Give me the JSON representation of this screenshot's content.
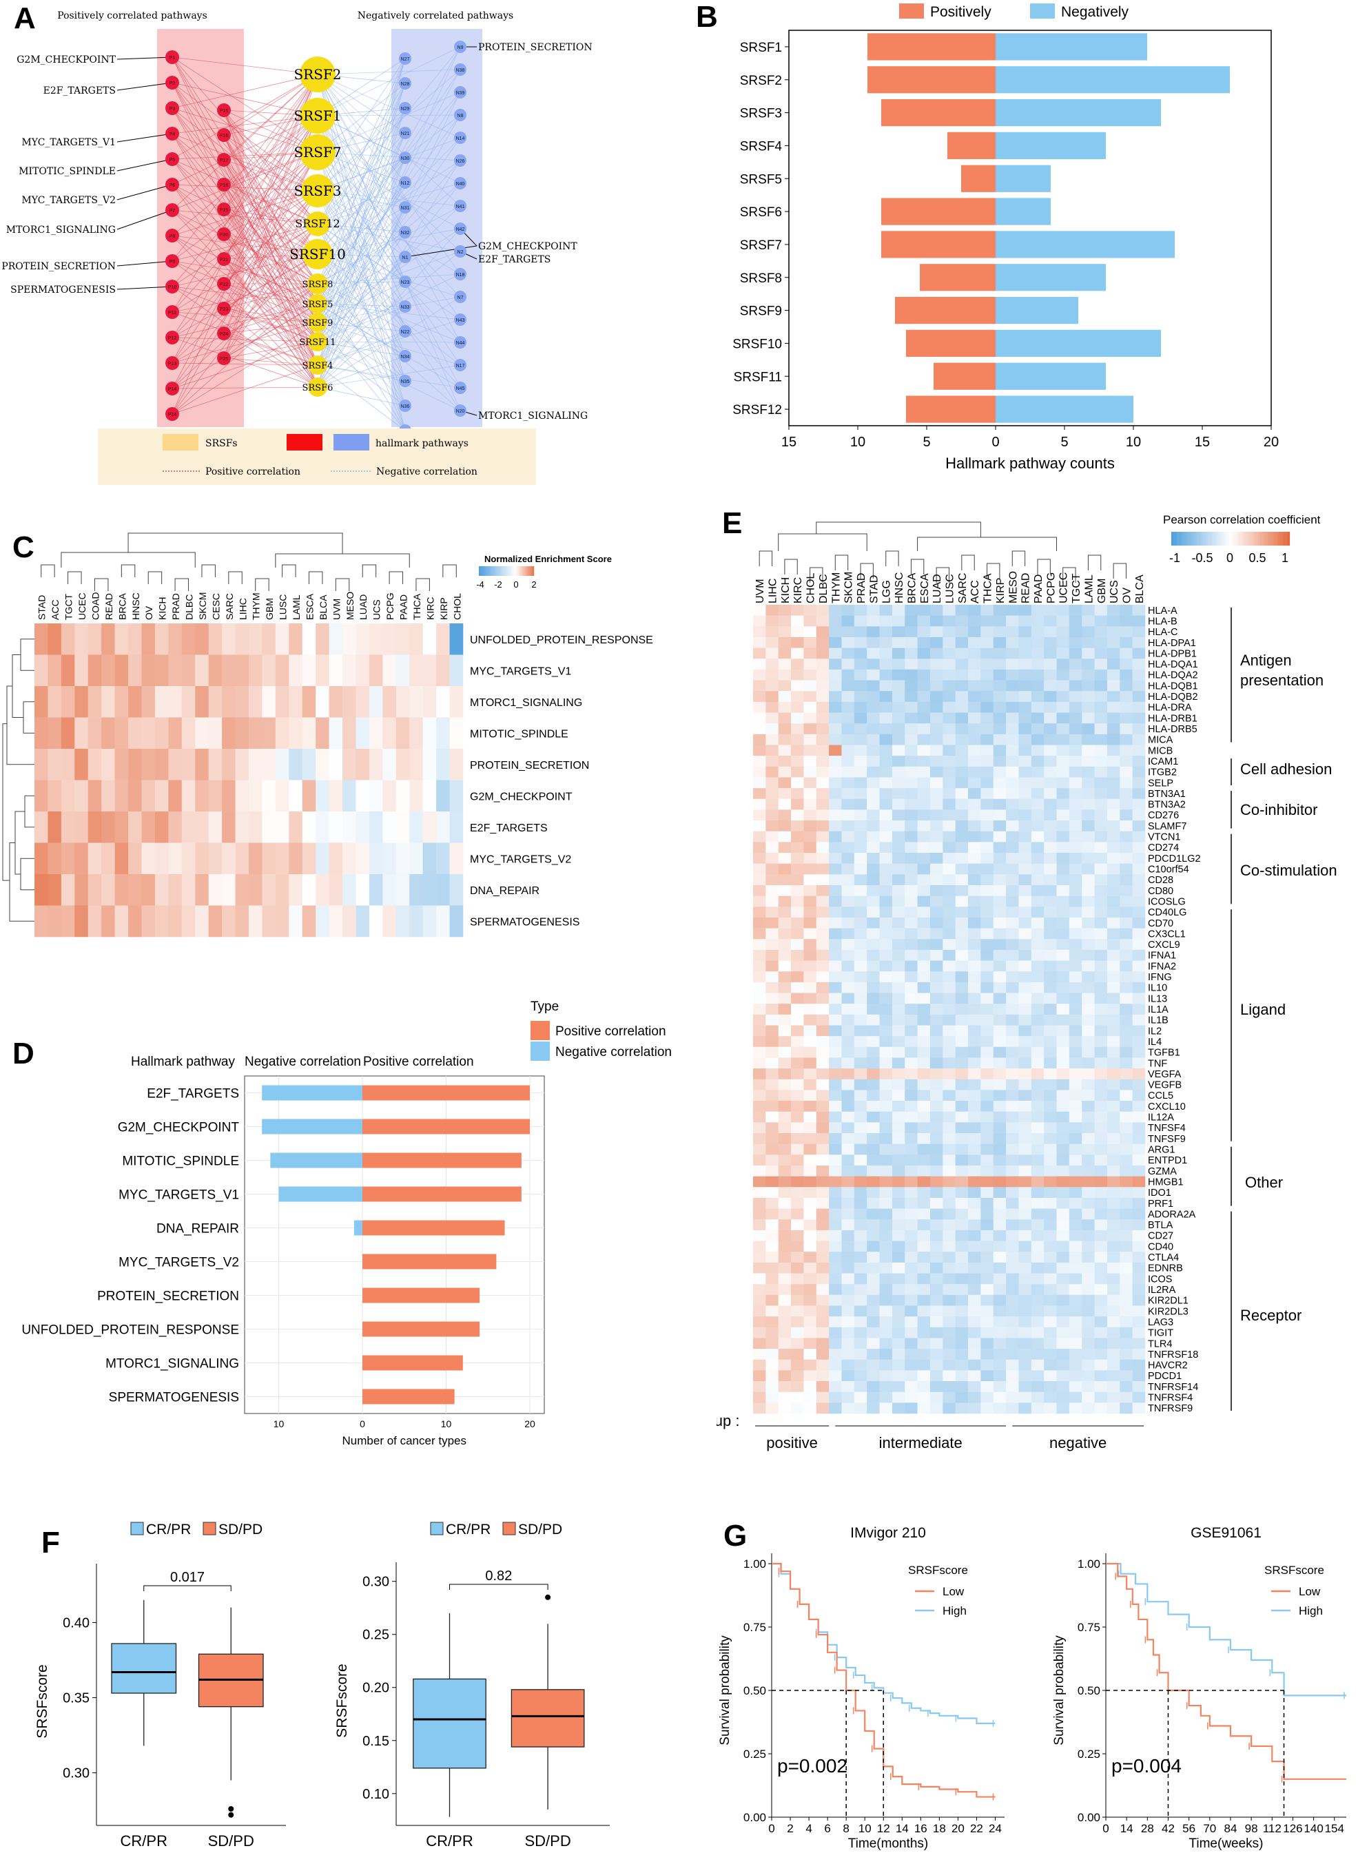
{
  "panel_labels": [
    "A",
    "B",
    "C",
    "D",
    "E",
    "F",
    "G"
  ],
  "colors": {
    "pos": "#f4845f",
    "neg": "#87c9f0",
    "srsf": "#f7dd16",
    "red_node": "#e8193c",
    "blue_node": "#8aa6f2"
  },
  "panel_a": {
    "pos_header": "Positively correlated pathways",
    "neg_header": "Negatively correlated pathways",
    "left_labels": [
      "G2M_CHECKPOINT",
      "E2F_TARGETS",
      "MYC_TARGETS_V1",
      "MITOTIC_SPINDLE",
      "MYC_TARGETS_V2",
      "MTORC1_SIGNALING",
      "PROTEIN_SECRETION",
      "SPERMATOGENESIS"
    ],
    "right_labels": [
      "PROTEIN_SECRETION",
      "G2M_CHECKPOINT",
      "E2F_TARGETS",
      "MTORC1_SIGNALING"
    ],
    "srsf_nodes": [
      "SRSF2",
      "SRSF1",
      "SRSF7",
      "SRSF3",
      "SRSF12",
      "SRSF10",
      "SRSF8",
      "SRSF5",
      "SRSF9",
      "SRSF11",
      "SRSF4",
      "SRSF6"
    ],
    "p_col1": [
      "P1",
      "P2",
      "P3",
      "P4",
      "P5",
      "P6",
      "P7",
      "P8",
      "P9",
      "P10",
      "P11",
      "P12",
      "P13",
      "P14",
      "P24"
    ],
    "p_col2": [
      "P15",
      "P16",
      "P17",
      "P18",
      "P19",
      "P20",
      "P21",
      "P22",
      "P23",
      "P24",
      "P25"
    ],
    "n_col1": [
      "N27",
      "N28",
      "N29",
      "N21",
      "N30",
      "N12",
      "N31",
      "N32",
      "N1",
      "N23",
      "N33",
      "N22",
      "N34",
      "N35",
      "N36",
      "N37"
    ],
    "n_col2": [
      "N9",
      "N38",
      "N39",
      "N8",
      "N14",
      "N26",
      "N40",
      "N41",
      "N42",
      "N2",
      "N18",
      "N7",
      "N43",
      "N44",
      "N17",
      "N45",
      "N20"
    ],
    "legend": {
      "srsfs": "SRSFs",
      "hallmark": "hallmark pathways",
      "pos": "Positive correlation",
      "neg": "Negative correlation"
    }
  },
  "chart_data": [
    {
      "panel": "B",
      "type": "bar",
      "legend": [
        "Positively",
        "Negatively"
      ],
      "categories": [
        "SRSF1",
        "SRSF2",
        "SRSF3",
        "SRSF4",
        "SRSF5",
        "SRSF6",
        "SRSF7",
        "SRSF8",
        "SRSF9",
        "SRSF10",
        "SRSF11",
        "SRSF12"
      ],
      "series": [
        {
          "name": "Positively",
          "values": [
            9.3,
            9.3,
            8.3,
            3.5,
            2.5,
            8.3,
            8.3,
            5.5,
            7.3,
            6.5,
            4.5,
            6.5
          ]
        },
        {
          "name": "Negatively",
          "values": [
            11,
            17,
            12,
            8,
            4,
            4,
            13,
            8,
            6,
            12,
            8,
            10
          ]
        }
      ],
      "xlabel": "Hallmark pathway counts",
      "ticks": [
        "15",
        "10",
        "5",
        "0",
        "5",
        "10",
        "15",
        "20"
      ],
      "xlim": [
        -15,
        20
      ]
    },
    {
      "panel": "C",
      "type": "heatmap",
      "legend_title": "Normalized Enrichment Score",
      "legend_ticks": [
        "-4",
        "-2",
        "0",
        "2"
      ],
      "columns": [
        "STAD",
        "ACC",
        "TGCT",
        "UCEC",
        "COAD",
        "READ",
        "BRCA",
        "HNSC",
        "OV",
        "KICH",
        "PRAD",
        "DLBC",
        "SKCM",
        "CESC",
        "SARC",
        "LIHC",
        "THYM",
        "GBM",
        "LUSC",
        "LAML",
        "ESCA",
        "BLCA",
        "UVM",
        "MESO",
        "LUAD",
        "UCS",
        "PCPG",
        "PAAD",
        "THCA",
        "KIRC",
        "KIRP",
        "CHOL"
      ],
      "rows": [
        "UNFOLDED_PROTEIN_RESPONSE",
        "MYC_TARGETS_V1",
        "MTORC1_SIGNALING",
        "MITOTIC_SPINDLE",
        "PROTEIN_SECRETION",
        "G2M_CHECKPOINT",
        "E2F_TARGETS",
        "MYC_TARGETS_V2",
        "DNA_REPAIR",
        "SPERMATOGENESIS"
      ]
    },
    {
      "panel": "D",
      "type": "bar",
      "legend_title": "Type",
      "legend": [
        "Positive correlation",
        "Negative correlation"
      ],
      "header_pathway": "Hallmark pathway",
      "header_neg": "Negative correlation",
      "header_pos": "Positive correlation",
      "categories": [
        "E2F_TARGETS",
        "G2M_CHECKPOINT",
        "MITOTIC_SPINDLE",
        "MYC_TARGETS_V1",
        "DNA_REPAIR",
        "MYC_TARGETS_V2",
        "PROTEIN_SECRETION",
        "UNFOLDED_PROTEIN_RESPONSE",
        "MTORC1_SIGNALING",
        "SPERMATOGENESIS"
      ],
      "series": [
        {
          "name": "Positive correlation",
          "values": [
            20,
            20,
            19,
            19,
            17,
            16,
            14,
            14,
            12,
            11
          ]
        },
        {
          "name": "Negative correlation",
          "values": [
            12,
            12,
            11,
            10,
            1,
            0,
            0,
            0,
            0,
            0
          ]
        }
      ],
      "xlabel": "Number of cancer types",
      "ticks": [
        "10",
        "0",
        "10",
        "20"
      ]
    },
    {
      "panel": "E",
      "type": "heatmap",
      "legend_title": "Pearson correlation coefficient",
      "legend_ticks": [
        "-1",
        "-0.5",
        "0",
        "0.5",
        "1"
      ],
      "columns": [
        "UVM",
        "LIHC",
        "KICH",
        "KIRC",
        "CHOL",
        "DLBC",
        "THYM",
        "SKCM",
        "PRAD",
        "STAD",
        "LGG",
        "HNSC",
        "BRCA",
        "ESCA",
        "LUAD",
        "LUSC",
        "SARC",
        "ACC",
        "THCA",
        "KIRP",
        "MESO",
        "READ",
        "PAAD",
        "PCPG",
        "UCEC",
        "TGCT",
        "LAML",
        "GBM",
        "UCS",
        "OV",
        "BLCA"
      ],
      "genes": [
        "HLA-A",
        "HLA-B",
        "HLA-C",
        "HLA-DPA1",
        "HLA-DPB1",
        "HLA-DQA1",
        "HLA-DQA2",
        "HLA-DQB1",
        "HLA-DQB2",
        "HLA-DRA",
        "HLA-DRB1",
        "HLA-DRB5",
        "MICA",
        "MICB",
        "ICAM1",
        "ITGB2",
        "SELP",
        "BTN3A1",
        "BTN3A2",
        "CD276",
        "SLAMF7",
        "VTCN1",
        "CD274",
        "PDCD1LG2",
        "C10orf54",
        "CD28",
        "CD80",
        "ICOSLG",
        "CD40LG",
        "CD70",
        "CX3CL1",
        "CXCL9",
        "IFNA1",
        "IFNA2",
        "IFNG",
        "IL10",
        "IL13",
        "IL1A",
        "IL1B",
        "IL2",
        "IL4",
        "TGFB1",
        "TNF",
        "VEGFA",
        "VEGFB",
        "CCL5",
        "CXCL10",
        "IL12A",
        "TNFSF4",
        "TNFSF9",
        "ARG1",
        "ENTPD1",
        "GZMA",
        "HMGB1",
        "IDO1",
        "PRF1",
        "ADORA2A",
        "BTLA",
        "CD27",
        "CD40",
        "CTLA4",
        "EDNRB",
        "ICOS",
        "IL2RA",
        "KIR2DL1",
        "KIR2DL3",
        "LAG3",
        "TIGIT",
        "TLR4",
        "TNFRSF18",
        "HAVCR2",
        "PDCD1",
        "TNFRSF14",
        "TNFRSF4",
        "TNFRSF9"
      ],
      "categories_text": [
        "Antigen",
        "presentation",
        "Cell adhesion",
        "Co-inhibitor",
        "Co-stimulation",
        "Ligand",
        "Other",
        "Receptor"
      ],
      "group_label": "group :",
      "groups": [
        "positive",
        "intermediate",
        "negative"
      ]
    },
    {
      "panel": "F",
      "type": "box",
      "legend": [
        "CR/PR",
        "SD/PD"
      ],
      "ylabel": "SRSFscore",
      "plots": [
        {
          "pvalue": "0.017",
          "yticks": [
            "0.40",
            "0.35",
            "0.30"
          ],
          "ylim": [
            0.265,
            0.43
          ],
          "boxes": [
            {
              "name": "CR/PR",
              "q1": 0.353,
              "median": 0.367,
              "q3": 0.386,
              "lo": 0.318,
              "hi": 0.415
            },
            {
              "name": "SD/PD",
              "q1": 0.344,
              "median": 0.362,
              "q3": 0.379,
              "lo": 0.295,
              "hi": 0.41,
              "outliers": [
                0.276,
                0.272
              ]
            }
          ],
          "xlabels": [
            "CR/PR",
            "SD/PD"
          ]
        },
        {
          "pvalue": "0.82",
          "yticks": [
            "0.30",
            "0.25",
            "0.20",
            "0.15",
            "0.10"
          ],
          "ylim": [
            0.07,
            0.305
          ],
          "boxes": [
            {
              "name": "CR/PR",
              "q1": 0.124,
              "median": 0.17,
              "q3": 0.208,
              "lo": 0.078,
              "hi": 0.27
            },
            {
              "name": "SD/PD",
              "q1": 0.144,
              "median": 0.173,
              "q3": 0.198,
              "lo": 0.085,
              "hi": 0.26,
              "outliers": [
                0.285
              ]
            }
          ],
          "xlabels": [
            "CR/PR",
            "SD/PD"
          ]
        }
      ]
    },
    {
      "panel": "G",
      "type": "line",
      "plots": [
        {
          "title": "IMvigor 210",
          "legend_title": "SRSFscore",
          "series_names": [
            "Low",
            "High"
          ],
          "ylabel": "Survival probability",
          "xlabel": "Time(months)",
          "pvalue": "p=0.002",
          "yticks": [
            "1.00",
            "0.75",
            "0.50",
            "0.25",
            "0.00"
          ],
          "xticks": [
            "0",
            "2",
            "4",
            "6",
            "8",
            "10",
            "12",
            "14",
            "16",
            "18",
            "20",
            "22",
            "24"
          ],
          "xlim": [
            0,
            25
          ],
          "low": [
            [
              0,
              1
            ],
            [
              1,
              0.97
            ],
            [
              2,
              0.9
            ],
            [
              3,
              0.84
            ],
            [
              4,
              0.78
            ],
            [
              5,
              0.72
            ],
            [
              6,
              0.65
            ],
            [
              7,
              0.58
            ],
            [
              8,
              0.5
            ],
            [
              9,
              0.42
            ],
            [
              10,
              0.34
            ],
            [
              11,
              0.27
            ],
            [
              12,
              0.2
            ],
            [
              13,
              0.16
            ],
            [
              14,
              0.13
            ],
            [
              16,
              0.12
            ],
            [
              18,
              0.11
            ],
            [
              20,
              0.1
            ],
            [
              22,
              0.08
            ],
            [
              24,
              0.08
            ]
          ],
          "high": [
            [
              0,
              1
            ],
            [
              1,
              0.96
            ],
            [
              2,
              0.9
            ],
            [
              3,
              0.84
            ],
            [
              4,
              0.78
            ],
            [
              5,
              0.73
            ],
            [
              6,
              0.68
            ],
            [
              7,
              0.63
            ],
            [
              8,
              0.59
            ],
            [
              9,
              0.56
            ],
            [
              10,
              0.53
            ],
            [
              11,
              0.51
            ],
            [
              12,
              0.49
            ],
            [
              13,
              0.47
            ],
            [
              14,
              0.45
            ],
            [
              15,
              0.43
            ],
            [
              16,
              0.42
            ],
            [
              17,
              0.41
            ],
            [
              18,
              0.4
            ],
            [
              20,
              0.39
            ],
            [
              22,
              0.37
            ],
            [
              24,
              0.37
            ]
          ],
          "median_low": 8,
          "median_high": 12
        },
        {
          "title": "GSE91061",
          "legend_title": "SRSFscore",
          "series_names": [
            "Low",
            "High"
          ],
          "ylabel": "Survival probability",
          "xlabel": "Time(weeks)",
          "pvalue": "p=0.004",
          "yticks": [
            "1.00",
            "0.75",
            "0.50",
            "0.25",
            "0.00"
          ],
          "xticks": [
            "0",
            "14",
            "28",
            "42",
            "56",
            "70",
            "84",
            "98",
            "112",
            "126",
            "140",
            "154"
          ],
          "xlim": [
            0,
            162
          ],
          "low": [
            [
              0,
              1
            ],
            [
              8,
              0.95
            ],
            [
              14,
              0.9
            ],
            [
              18,
              0.84
            ],
            [
              22,
              0.78
            ],
            [
              28,
              0.7
            ],
            [
              32,
              0.64
            ],
            [
              36,
              0.57
            ],
            [
              42,
              0.5
            ],
            [
              56,
              0.44
            ],
            [
              64,
              0.4
            ],
            [
              70,
              0.36
            ],
            [
              84,
              0.32
            ],
            [
              98,
              0.28
            ],
            [
              112,
              0.22
            ],
            [
              120,
              0.15
            ],
            [
              162,
              0.15
            ]
          ],
          "high": [
            [
              0,
              1
            ],
            [
              10,
              0.96
            ],
            [
              20,
              0.92
            ],
            [
              28,
              0.85
            ],
            [
              42,
              0.8
            ],
            [
              56,
              0.75
            ],
            [
              70,
              0.7
            ],
            [
              84,
              0.66
            ],
            [
              98,
              0.62
            ],
            [
              112,
              0.57
            ],
            [
              120,
              0.48
            ],
            [
              162,
              0.48
            ]
          ],
          "median_low": 42,
          "median_high": 120
        }
      ]
    }
  ]
}
